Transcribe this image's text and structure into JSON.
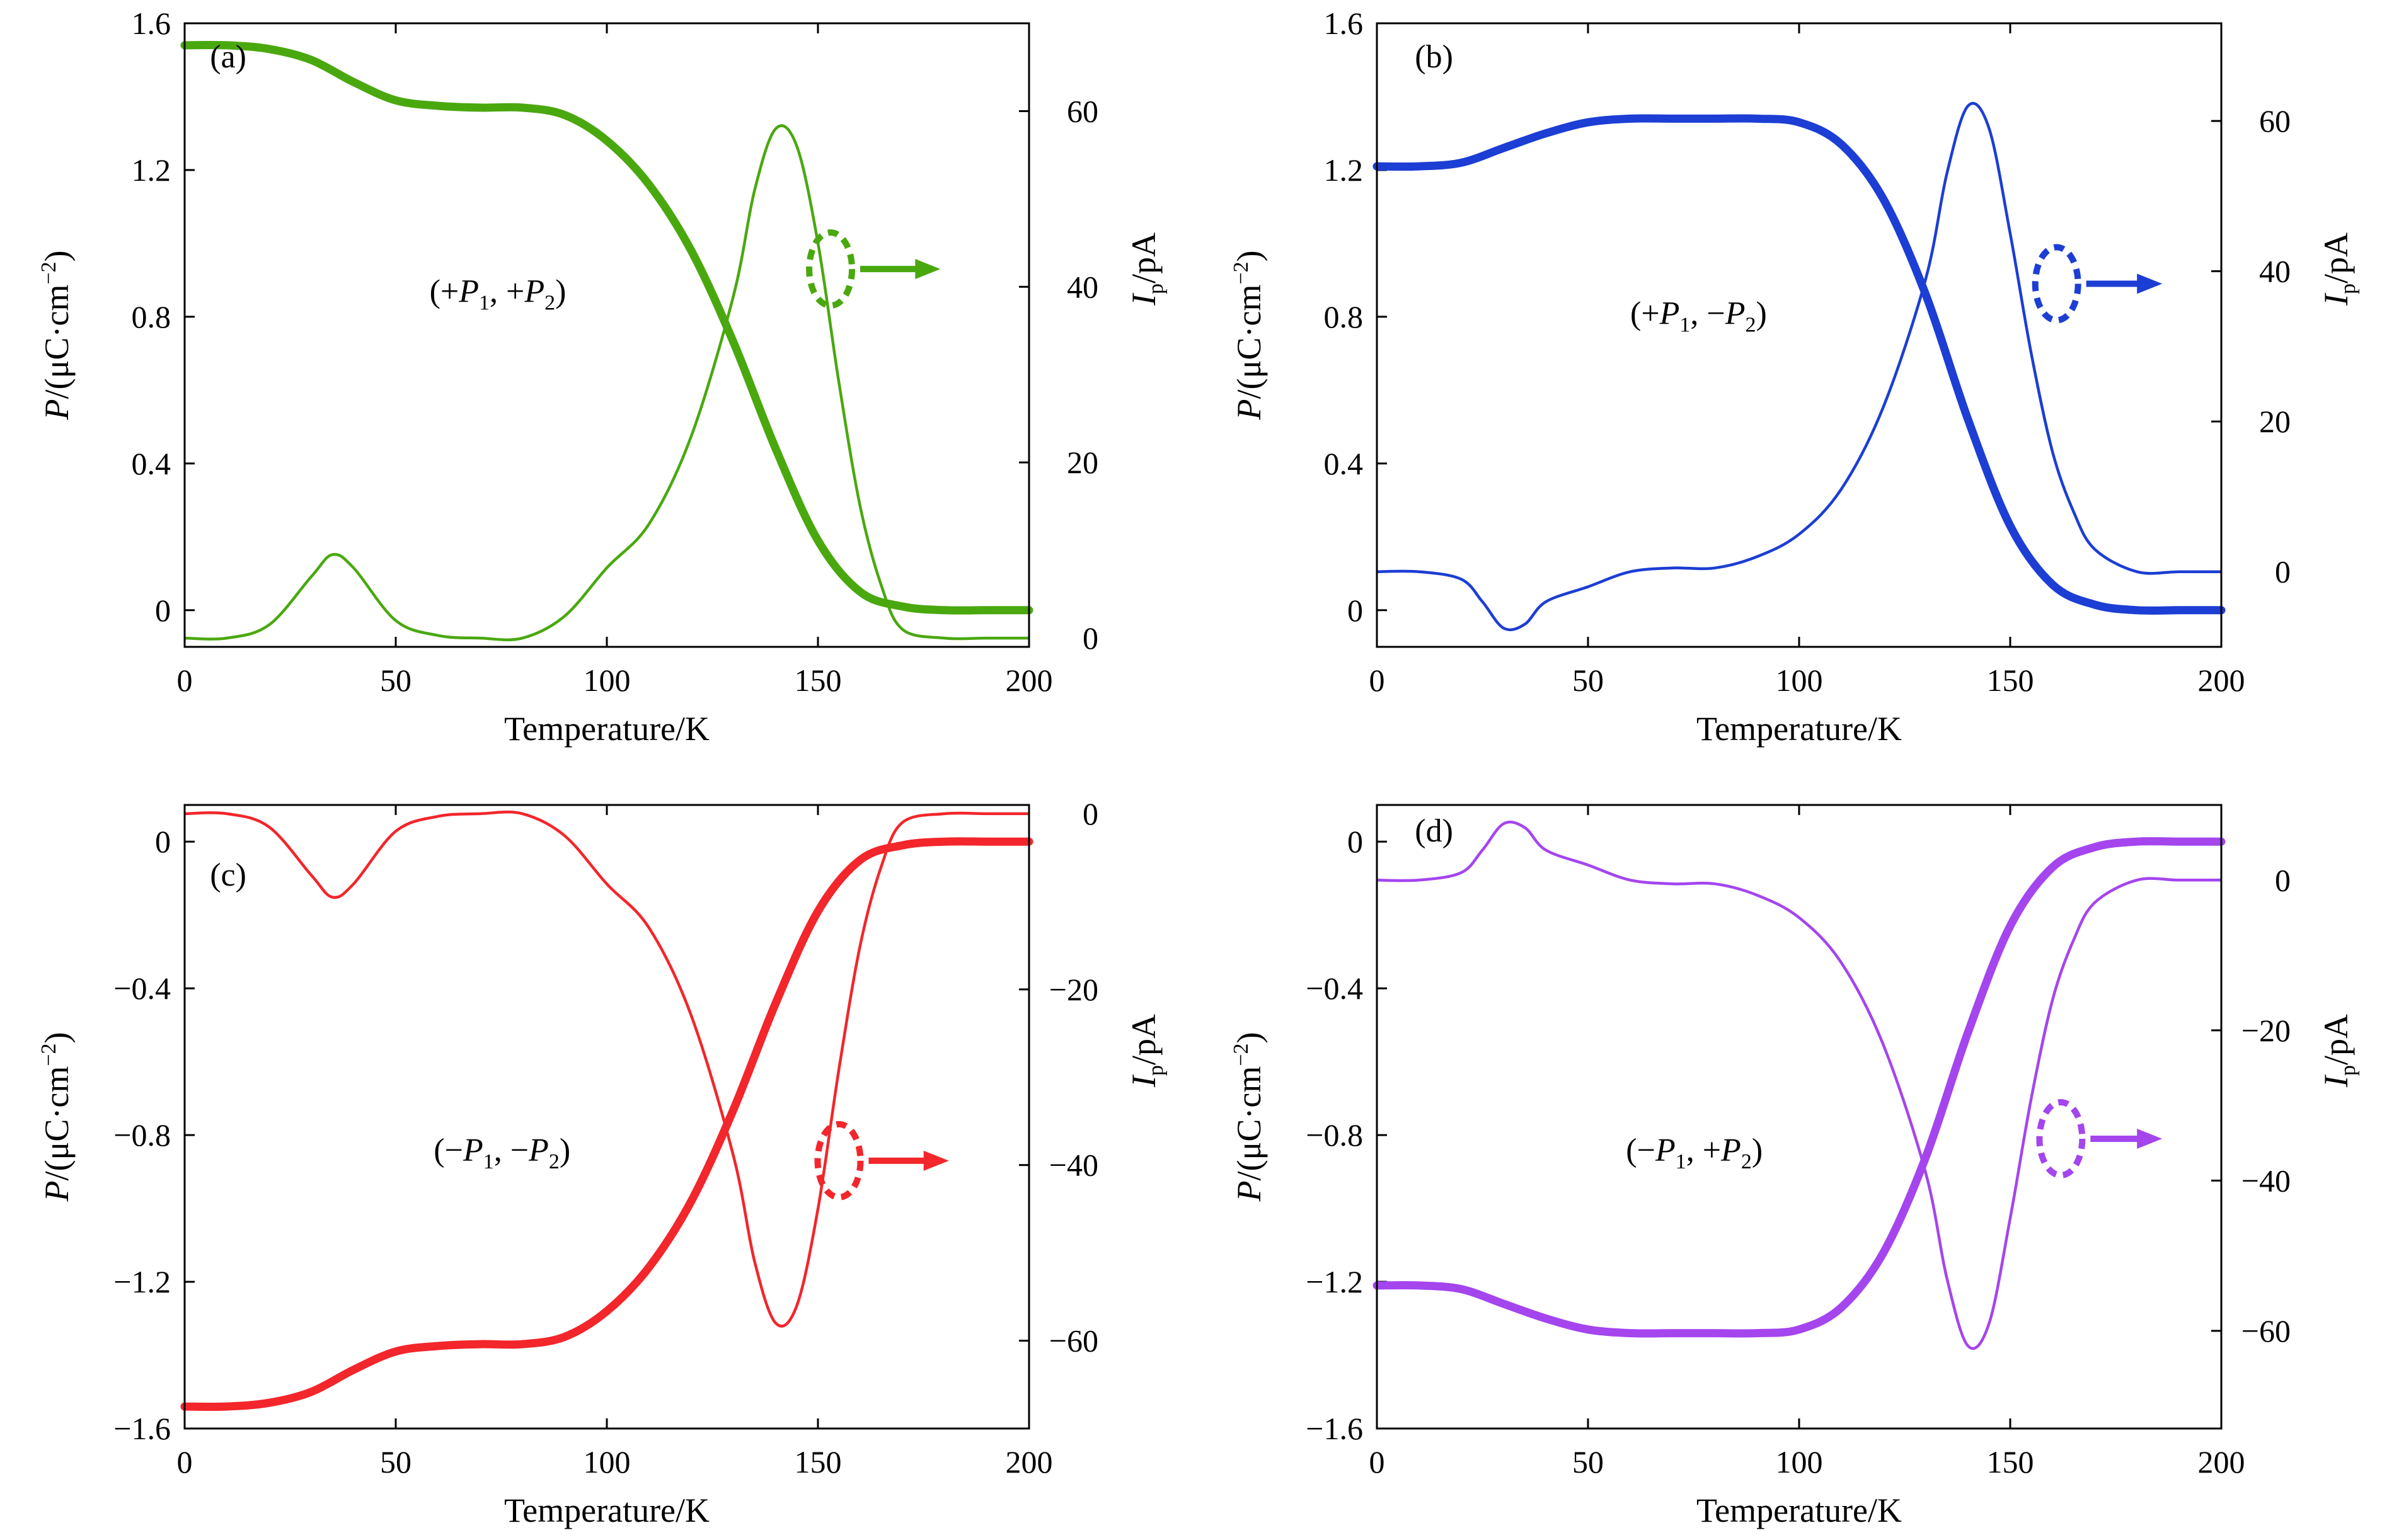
{
  "chart_data": [
    {
      "type": "line",
      "panel_label": "(a)",
      "color": "#4aa80f",
      "annotation": {
        "pre": "(+",
        "p1": "P",
        "mid": ", +",
        "p2": "P",
        "post": ")"
      },
      "xlabel": "Temperature/K",
      "ylabel_left": {
        "main": "P",
        "rest": "/(μC·cm",
        "sup": "−2",
        "close": ")"
      },
      "ylabel_right": {
        "main": "I",
        "sub": "p",
        "rest": "/pA"
      },
      "xlim": [
        0,
        200
      ],
      "ylim_left": [
        -0.1,
        1.6
      ],
      "ylim_right": [
        -1,
        70
      ],
      "xticks": [
        0,
        50,
        100,
        150,
        200
      ],
      "xtick_labels": [
        "0",
        "50",
        "100",
        "150",
        "200"
      ],
      "yticks_left": [
        0,
        0.4,
        0.8,
        1.2,
        1.6
      ],
      "ytick_labels_left": [
        "0",
        "0.4",
        "0.8",
        "1.2",
        "1.6"
      ],
      "yticks_right": [
        0,
        20,
        40,
        60
      ],
      "ytick_labels_right": [
        "0",
        "20",
        "40",
        "60"
      ],
      "series": [
        {
          "name": "P",
          "axis": "left",
          "x": [
            0,
            10,
            20,
            30,
            40,
            50,
            60,
            70,
            80,
            90,
            100,
            110,
            120,
            130,
            140,
            150,
            160,
            170,
            180,
            190,
            200
          ],
          "values": [
            1.54,
            1.54,
            1.53,
            1.5,
            1.44,
            1.39,
            1.375,
            1.37,
            1.37,
            1.35,
            1.28,
            1.16,
            0.98,
            0.73,
            0.44,
            0.19,
            0.05,
            0.01,
            0.0,
            0.0,
            0.0
          ]
        },
        {
          "name": "Ip",
          "axis": "right",
          "x": [
            0,
            10,
            20,
            30,
            35,
            40,
            50,
            60,
            70,
            80,
            90,
            100,
            110,
            120,
            130,
            135,
            140,
            145,
            150,
            155,
            160,
            165,
            170,
            180,
            190,
            200
          ],
          "values": [
            0,
            0,
            1.5,
            7,
            9.5,
            8,
            2,
            0.3,
            0,
            0,
            2.5,
            8,
            13,
            23,
            39,
            51,
            58,
            56,
            45,
            29,
            15,
            6,
            1,
            0,
            0,
            0
          ]
        }
      ]
    },
    {
      "type": "line",
      "panel_label": "(b)",
      "color": "#1c3ed4",
      "annotation": {
        "pre": "(+",
        "p1": "P",
        "mid": ", −",
        "p2": "P",
        "post": ")"
      },
      "xlabel": "Temperature/K",
      "ylabel_left": {
        "main": "P",
        "rest": "/(μC·cm",
        "sup": "−2",
        "close": ")"
      },
      "ylabel_right": {
        "main": "I",
        "sub": "p",
        "rest": "/pA"
      },
      "xlim": [
        0,
        200
      ],
      "ylim_left": [
        -0.1,
        1.6
      ],
      "ylim_right": [
        -10,
        73
      ],
      "xticks": [
        0,
        50,
        100,
        150,
        200
      ],
      "xtick_labels": [
        "0",
        "50",
        "100",
        "150",
        "200"
      ],
      "yticks_left": [
        0,
        0.4,
        0.8,
        1.2,
        1.6
      ],
      "ytick_labels_left": [
        "0",
        "0.4",
        "0.8",
        "1.2",
        "1.6"
      ],
      "yticks_right": [
        0,
        20,
        40,
        60
      ],
      "ytick_labels_right": [
        "0",
        "20",
        "40",
        "60"
      ],
      "series": [
        {
          "name": "P",
          "axis": "left",
          "x": [
            0,
            10,
            20,
            30,
            40,
            50,
            60,
            70,
            80,
            90,
            100,
            110,
            120,
            130,
            140,
            150,
            160,
            170,
            180,
            190,
            200
          ],
          "values": [
            1.21,
            1.21,
            1.22,
            1.26,
            1.3,
            1.33,
            1.34,
            1.34,
            1.34,
            1.34,
            1.33,
            1.27,
            1.12,
            0.86,
            0.52,
            0.23,
            0.07,
            0.015,
            0.0,
            0.0,
            0.0
          ]
        },
        {
          "name": "Ip",
          "axis": "right",
          "x": [
            0,
            10,
            20,
            25,
            30,
            35,
            40,
            50,
            60,
            70,
            80,
            90,
            100,
            110,
            120,
            130,
            135,
            140,
            145,
            150,
            155,
            160,
            165,
            170,
            180,
            190,
            200
          ],
          "values": [
            0,
            0,
            -1,
            -4,
            -7.5,
            -7,
            -4,
            -2,
            0,
            0.5,
            0.5,
            2,
            5,
            11,
            22,
            39,
            53,
            62,
            59,
            45,
            29,
            16,
            8,
            3,
            0,
            0,
            0
          ]
        }
      ]
    },
    {
      "type": "line",
      "panel_label": "(c)",
      "color": "#f2262b",
      "annotation": {
        "pre": "(−",
        "p1": "P",
        "mid": ", −",
        "p2": "P",
        "post": ")"
      },
      "xlabel": "Temperature/K",
      "ylabel_left": {
        "main": "P",
        "rest": "/(μC·cm",
        "sup": "−2",
        "close": ")"
      },
      "ylabel_right": {
        "main": "I",
        "sub": "p",
        "rest": "/pA"
      },
      "xlim": [
        0,
        200
      ],
      "ylim_left": [
        -1.6,
        0.1
      ],
      "ylim_right": [
        -70,
        1
      ],
      "xticks": [
        0,
        50,
        100,
        150,
        200
      ],
      "xtick_labels": [
        "0",
        "50",
        "100",
        "150",
        "200"
      ],
      "yticks_left": [
        -1.6,
        -1.2,
        -0.8,
        -0.4,
        0
      ],
      "ytick_labels_left": [
        "−1.6",
        "−1.2",
        "−0.8",
        "−0.4",
        "0"
      ],
      "yticks_right": [
        -60,
        -40,
        -20,
        0
      ],
      "ytick_labels_right": [
        "−60",
        "−40",
        "−20",
        "0"
      ],
      "series": [
        {
          "name": "P",
          "axis": "left",
          "x": [
            0,
            10,
            20,
            30,
            40,
            50,
            60,
            70,
            80,
            90,
            100,
            110,
            120,
            130,
            140,
            150,
            160,
            170,
            180,
            190,
            200
          ],
          "values": [
            -1.54,
            -1.54,
            -1.53,
            -1.5,
            -1.44,
            -1.39,
            -1.375,
            -1.37,
            -1.37,
            -1.35,
            -1.28,
            -1.16,
            -0.98,
            -0.73,
            -0.44,
            -0.19,
            -0.05,
            -0.01,
            0.0,
            0.0,
            0.0
          ]
        },
        {
          "name": "Ip",
          "axis": "right",
          "x": [
            0,
            10,
            20,
            30,
            35,
            40,
            50,
            60,
            70,
            80,
            90,
            100,
            110,
            120,
            130,
            135,
            140,
            145,
            150,
            155,
            160,
            165,
            170,
            180,
            190,
            200
          ],
          "values": [
            0,
            0,
            -1.5,
            -7,
            -9.5,
            -8,
            -2,
            -0.3,
            0,
            0,
            -2.5,
            -8,
            -13,
            -23,
            -39,
            -51,
            -58,
            -56,
            -45,
            -29,
            -15,
            -6,
            -1,
            0,
            0,
            0
          ]
        }
      ]
    },
    {
      "type": "line",
      "panel_label": "(d)",
      "color": "#a445ee",
      "annotation": {
        "pre": "(−",
        "p1": "P",
        "mid": ", +",
        "p2": "P",
        "post": ")"
      },
      "xlabel": "Temperature/K",
      "ylabel_left": {
        "main": "P",
        "rest": "/(μC·cm",
        "sup": "−2",
        "close": ")"
      },
      "ylabel_right": {
        "main": "I",
        "sub": "p",
        "rest": "/pA"
      },
      "xlim": [
        0,
        200
      ],
      "ylim_left": [
        -1.6,
        0.1
      ],
      "ylim_right": [
        -73,
        10
      ],
      "xticks": [
        0,
        50,
        100,
        150,
        200
      ],
      "xtick_labels": [
        "0",
        "50",
        "100",
        "150",
        "200"
      ],
      "yticks_left": [
        -1.6,
        -1.2,
        -0.8,
        -0.4,
        0
      ],
      "ytick_labels_left": [
        "−1.6",
        "−1.2",
        "−0.8",
        "−0.4",
        "0"
      ],
      "yticks_right": [
        -60,
        -40,
        -20,
        0
      ],
      "ytick_labels_right": [
        "−60",
        "−40",
        "−20",
        "0"
      ],
      "series": [
        {
          "name": "P",
          "axis": "left",
          "x": [
            0,
            10,
            20,
            30,
            40,
            50,
            60,
            70,
            80,
            90,
            100,
            110,
            120,
            130,
            140,
            150,
            160,
            170,
            180,
            190,
            200
          ],
          "values": [
            -1.21,
            -1.21,
            -1.22,
            -1.26,
            -1.3,
            -1.33,
            -1.34,
            -1.34,
            -1.34,
            -1.34,
            -1.33,
            -1.27,
            -1.12,
            -0.86,
            -0.52,
            -0.23,
            -0.07,
            -0.015,
            0.0,
            0.0,
            0.0
          ]
        },
        {
          "name": "Ip",
          "axis": "right",
          "x": [
            0,
            10,
            20,
            25,
            30,
            35,
            40,
            50,
            60,
            70,
            80,
            90,
            100,
            110,
            120,
            130,
            135,
            140,
            145,
            150,
            155,
            160,
            165,
            170,
            180,
            190,
            200
          ],
          "values": [
            0,
            0,
            1,
            4,
            7.5,
            7,
            4,
            2,
            0,
            -0.5,
            -0.5,
            -2,
            -5,
            -11,
            -22,
            -39,
            -53,
            -62,
            -59,
            -45,
            -29,
            -16,
            -8,
            -3,
            0,
            0,
            0
          ]
        }
      ]
    }
  ]
}
